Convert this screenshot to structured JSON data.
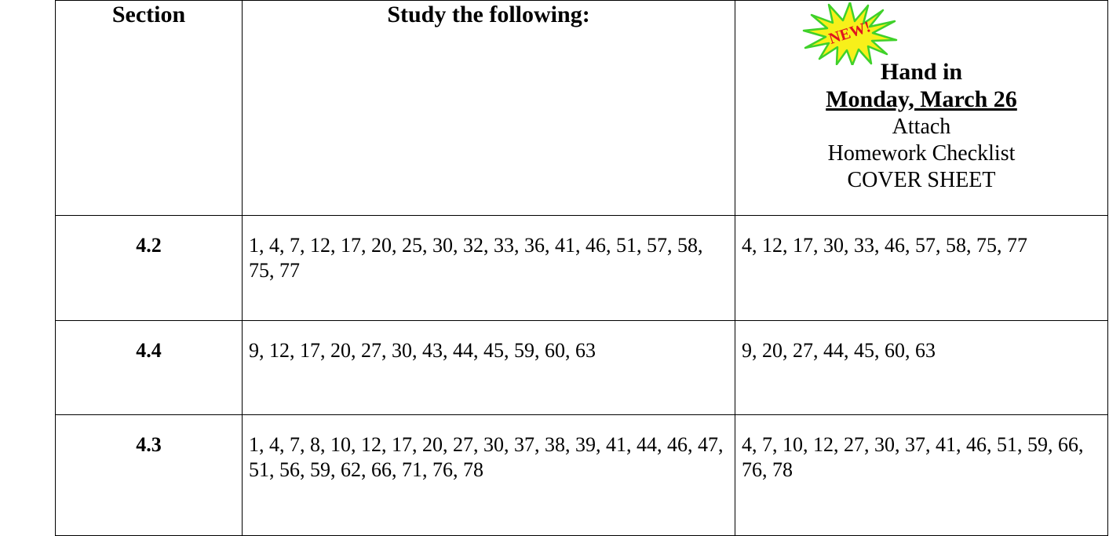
{
  "header": {
    "section": "Section",
    "study": "Study the following:",
    "badge": "NEW!",
    "hand_in": "Hand in",
    "due_date": "Monday, March 26",
    "attach": "Attach",
    "checklist": "Homework Checklist",
    "cover": "COVER SHEET"
  },
  "rows": [
    {
      "section": "4.2",
      "study": "1, 4, 7, 12, 17, 20, 25, 30, 32, 33, 36, 41, 46, 51, 57, 58, 75, 77",
      "hand_in": "4, 12, 17, 30, 33, 46, 57, 58, 75, 77"
    },
    {
      "section": "4.4",
      "study": "9, 12, 17, 20, 27, 30, 43, 44, 45, 59, 60, 63",
      "hand_in": "9, 20, 27, 44, 45, 60, 63"
    },
    {
      "section": "4.3",
      "study": "1, 4, 7, 8, 10, 12, 17, 20, 27, 30, 37, 38, 39, 41, 44, 46, 47, 51, 56, 59, 62, 66, 71, 76, 78",
      "hand_in": "4, 7, 10, 12, 27, 30, 37, 41, 46, 51, 59, 66, 76, 78"
    }
  ],
  "colors": {
    "burst_fill": "#f7f01a",
    "burst_edge": "#3fd12a",
    "badge_text": "#e0141e"
  }
}
